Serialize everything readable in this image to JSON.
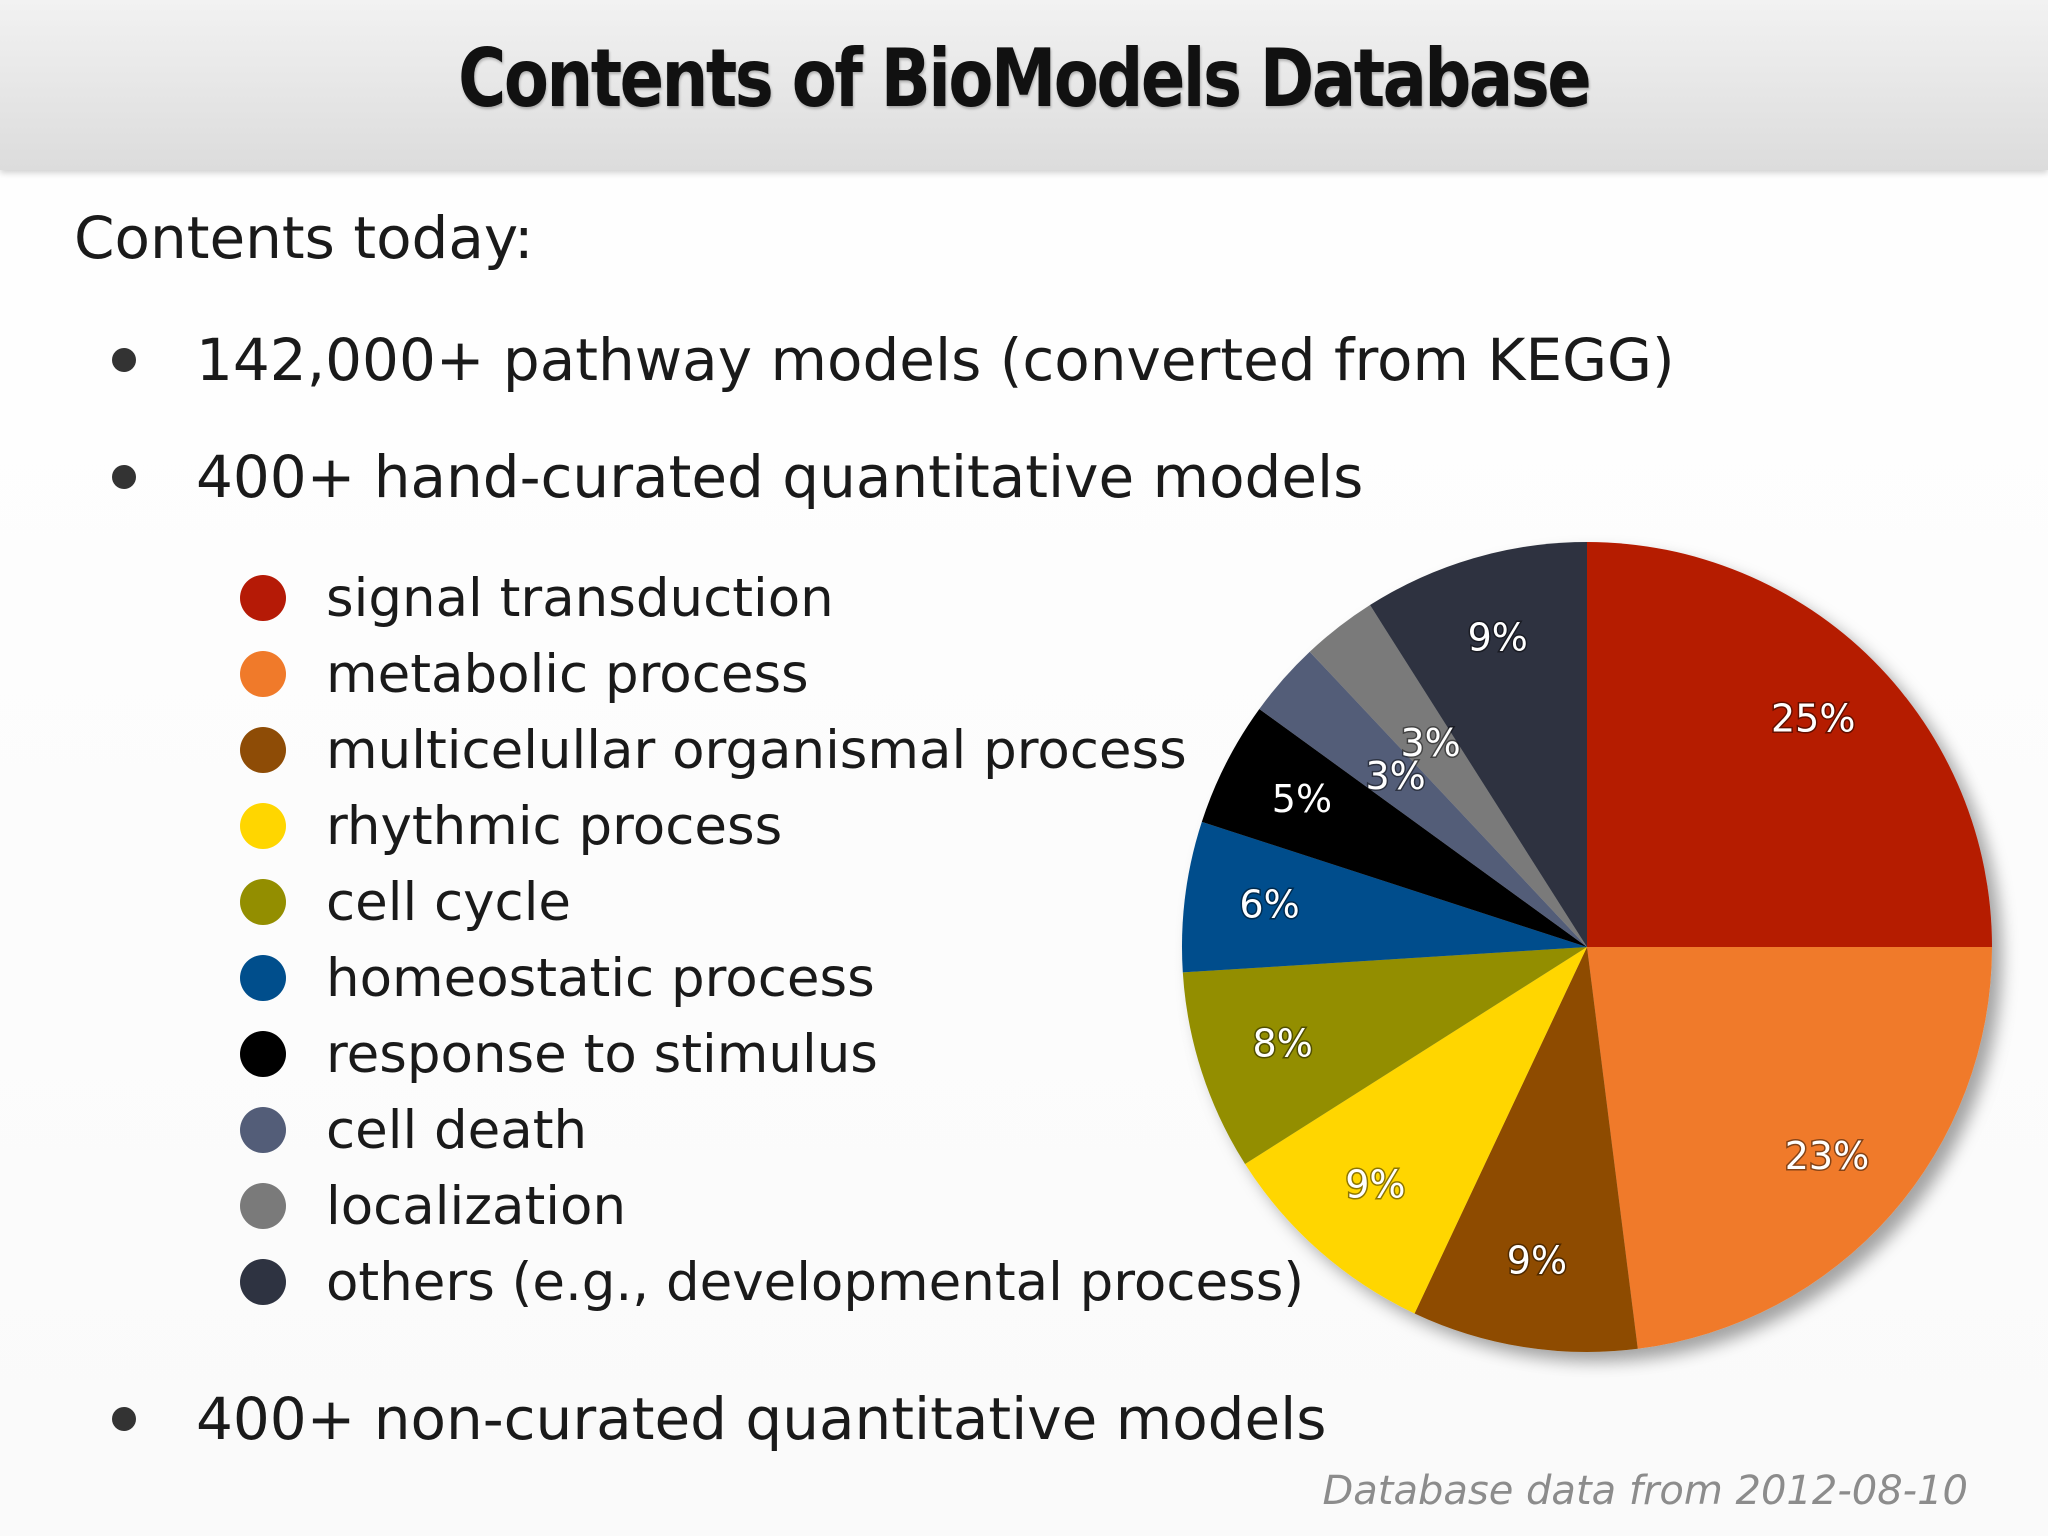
{
  "header": {
    "title": "Contents of BioModels Database"
  },
  "intro": "Contents today:",
  "bullets": [
    "142,000+ pathway models (converted from KEGG)",
    "400+ hand-curated quantitative models",
    "400+ non-curated quantitative models"
  ],
  "footnote": "Database data from 2012-08-10",
  "chart_data": {
    "type": "pie",
    "labels": [
      "signal transduction",
      "metabolic process",
      "multicelullar organismal process",
      "rhythmic process",
      "cell cycle",
      "homeostatic process",
      "response to stimulus",
      "cell death",
      "localization",
      "others (e.g., developmental process)"
    ],
    "values": [
      25,
      23,
      9,
      9,
      8,
      6,
      5,
      3,
      3,
      9
    ],
    "value_labels": [
      "25%",
      "23%",
      "9%",
      "9%",
      "8%",
      "6%",
      "5%",
      "3%",
      "3%",
      "9%"
    ],
    "colors": [
      "#B51A06",
      "#F07A2A",
      "#8E4C06",
      "#FFD600",
      "#938E00",
      "#004E8C",
      "#000000",
      "#535D78",
      "#7A7A7A",
      "#2E3341"
    ],
    "start": "12 o'clock",
    "direction": "clockwise",
    "legend_position": "left"
  }
}
